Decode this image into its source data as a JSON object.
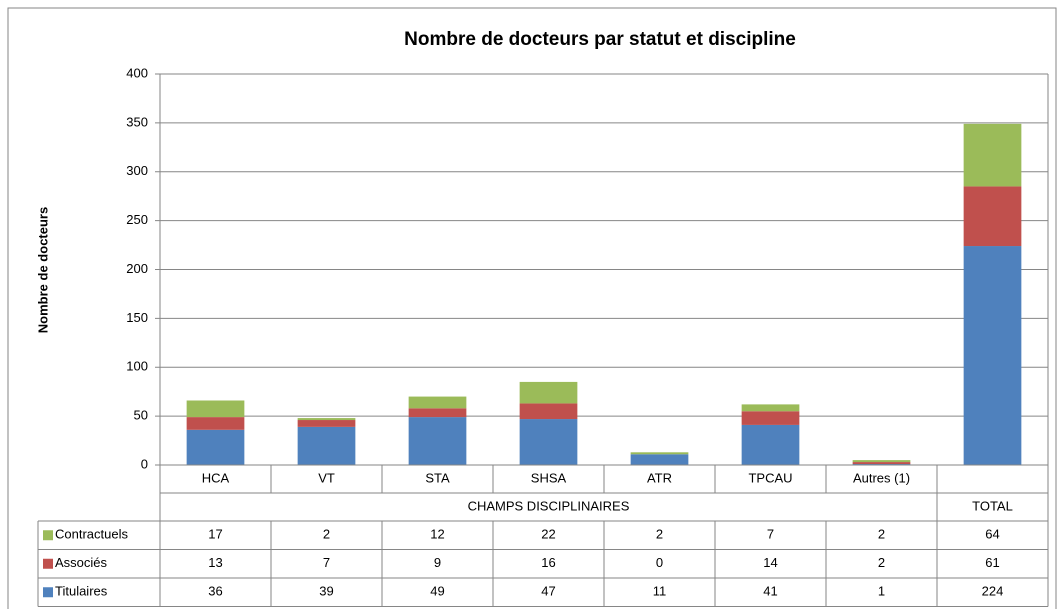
{
  "chart_data": {
    "type": "bar",
    "stacked": true,
    "title": "Nombre de docteurs par statut et discipline",
    "y_label": "Nombre de docteurs",
    "categories": [
      "HCA",
      "VT",
      "STA",
      "SHSA",
      "ATR",
      "TPCAU",
      "Autres (1)",
      null
    ],
    "groups": [
      {
        "label": "CHAMPS DISCIPLINAIRES",
        "span": 7
      },
      {
        "label": "TOTAL",
        "span": 1
      }
    ],
    "series": [
      {
        "name": "Titulaires",
        "color": "#4f81bd",
        "values": [
          36,
          39,
          49,
          47,
          11,
          41,
          1,
          224
        ]
      },
      {
        "name": "Associés",
        "color": "#c0504d",
        "values": [
          13,
          7,
          9,
          16,
          0,
          14,
          2,
          61
        ]
      },
      {
        "name": "Contractuels",
        "color": "#9bbb59",
        "values": [
          17,
          2,
          12,
          22,
          2,
          7,
          2,
          64
        ]
      }
    ],
    "ylim": [
      0,
      400
    ],
    "yticks": [
      0,
      50,
      100,
      150,
      200,
      250,
      300,
      350,
      400
    ],
    "grid": true
  }
}
